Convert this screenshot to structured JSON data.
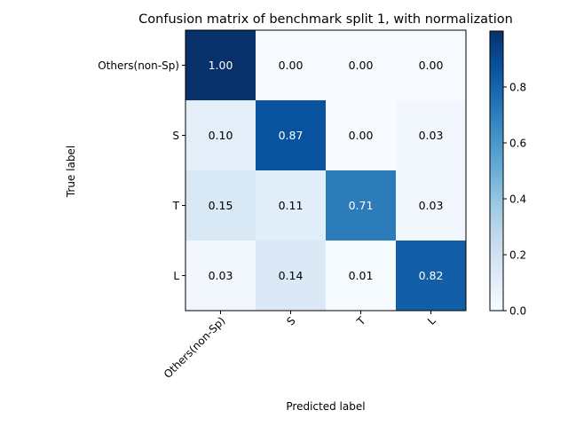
{
  "chart_data": {
    "type": "heatmap",
    "title": "Confusion matrix of benchmark split 1, with normalization",
    "xlabel": "Predicted label",
    "ylabel": "True label",
    "row_labels": [
      "Others(non-Sp)",
      "S",
      "T",
      "L"
    ],
    "col_labels": [
      "Others(non-Sp)",
      "S",
      "T",
      "L"
    ],
    "values": [
      [
        1.0,
        0.0,
        0.0,
        0.0
      ],
      [
        0.1,
        0.87,
        0.0,
        0.03
      ],
      [
        0.15,
        0.11,
        0.71,
        0.03
      ],
      [
        0.03,
        0.14,
        0.01,
        0.82
      ]
    ],
    "cell_labels": [
      [
        "1.00",
        "0.00",
        "0.00",
        "0.00"
      ],
      [
        "0.10",
        "0.87",
        "0.00",
        "0.03"
      ],
      [
        "0.15",
        "0.11",
        "0.71",
        "0.03"
      ],
      [
        "0.03",
        "0.14",
        "0.01",
        "0.82"
      ]
    ],
    "colormap": "Blues",
    "colorbar": {
      "range": [
        0,
        1
      ],
      "ticks": [
        0.0,
        0.2,
        0.4,
        0.6,
        0.8
      ],
      "tick_labels": [
        "0.0",
        "0.2",
        "0.4",
        "0.6",
        "0.8"
      ]
    }
  }
}
